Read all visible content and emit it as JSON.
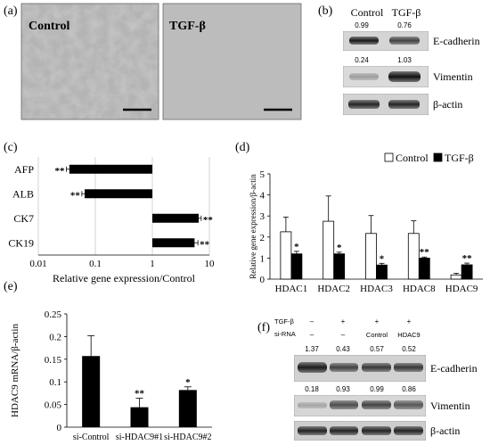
{
  "panel_a": {
    "label": "(a)",
    "images": [
      {
        "label": "Control"
      },
      {
        "label": "TGF-β"
      }
    ]
  },
  "panel_b": {
    "label": "(b)",
    "columns": [
      "Control",
      "TGF-β"
    ],
    "blots": [
      {
        "name": "E-cadherin",
        "values": [
          "0.99",
          "0.76"
        ]
      },
      {
        "name": "Vimentin",
        "values": [
          "0.24",
          "1.03"
        ]
      },
      {
        "name": "β-actin",
        "values": []
      }
    ]
  },
  "panel_f": {
    "label": "(f)",
    "row_labels": [
      "TGF-β",
      "si-RNA"
    ],
    "lanes": [
      {
        "tgf": "–",
        "sirna": "–"
      },
      {
        "tgf": "+",
        "sirna": "–"
      },
      {
        "tgf": "+",
        "sirna": "Control"
      },
      {
        "tgf": "+",
        "sirna": "HDAC9"
      }
    ],
    "blots": [
      {
        "name": "E-cadherin",
        "values": [
          "1.37",
          "0.43",
          "0.57",
          "0.52"
        ]
      },
      {
        "name": "Vimentin",
        "values": [
          "0.18",
          "0.93",
          "0.99",
          "0.86"
        ]
      },
      {
        "name": "β-actin",
        "values": []
      }
    ]
  },
  "chart_data": [
    {
      "panel": "(c)",
      "type": "bar",
      "orientation": "horizontal",
      "log_scale": true,
      "categories": [
        "AFP",
        "ALB",
        "CK7",
        "CK19"
      ],
      "values": [
        0.035,
        0.065,
        6.5,
        5.5
      ],
      "errors": [
        0.004,
        0.007,
        0.7,
        0.8
      ],
      "significance": [
        "**",
        "**",
        "**",
        "**"
      ],
      "xlabel": "Relative gene expression/Control",
      "xlim": [
        0.01,
        10
      ],
      "xticks": [
        "0.01",
        "0.1",
        "1",
        "10"
      ],
      "grid": true,
      "bar_color": "#000000"
    },
    {
      "panel": "(d)",
      "type": "bar",
      "categories": [
        "HDAC1",
        "HDAC2",
        "HDAC3",
        "HDAC8",
        "HDAC9"
      ],
      "series": [
        {
          "name": "Control",
          "values": [
            2.25,
            2.75,
            2.17,
            2.17,
            0.2
          ],
          "errors": [
            0.7,
            1.2,
            0.85,
            0.6,
            0.08
          ],
          "color": "#ffffff",
          "significance": [
            "",
            "",
            "",
            "",
            ""
          ]
        },
        {
          "name": "TGF-β",
          "values": [
            1.2,
            1.2,
            0.67,
            1.0,
            0.68
          ],
          "errors": [
            0.12,
            0.08,
            0.08,
            0.05,
            0.08
          ],
          "color": "#000000",
          "significance": [
            "*",
            "*",
            "*",
            "**",
            "**"
          ]
        }
      ],
      "ylabel": "Relative gene expression/β-actin",
      "ylim": [
        0,
        5
      ],
      "yticks": [
        "0",
        "1",
        "2",
        "3",
        "4",
        "5"
      ],
      "legend": "top-right"
    },
    {
      "panel": "(e)",
      "type": "bar",
      "categories": [
        "si-Control",
        "si-HDAC9#1",
        "si-HDAC9#2"
      ],
      "values": [
        0.157,
        0.044,
        0.082
      ],
      "errors": [
        0.045,
        0.02,
        0.007
      ],
      "significance": [
        "",
        "**",
        "*"
      ],
      "ylabel": "HDAC9 mRNA/β-actin",
      "ylim": [
        0,
        0.25
      ],
      "yticks": [
        "0",
        "0.05",
        "0.1",
        "0.15",
        "0.2",
        "0.25"
      ],
      "bar_color": "#000000"
    }
  ]
}
